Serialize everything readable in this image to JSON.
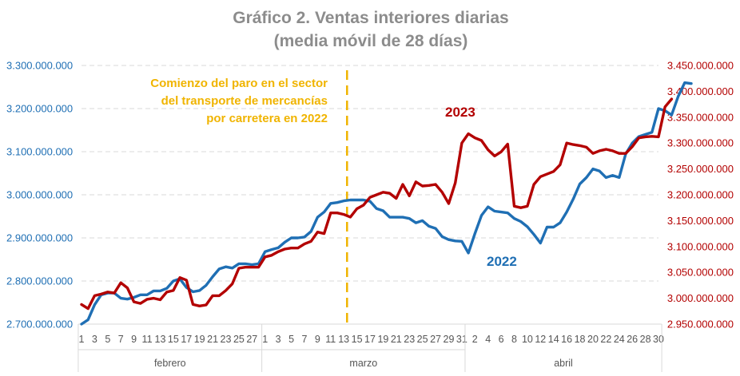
{
  "chart_data": {
    "type": "line",
    "title_line1": "Gráfico 2. Ventas interiores diarias",
    "title_line2": "(media móvil de 28 días)",
    "left_axis": {
      "min": 2700000000,
      "max": 3300000000,
      "ticks": [
        {
          "v": 2700000000,
          "label": "2.700.000.000"
        },
        {
          "v": 2800000000,
          "label": "2.800.000.000"
        },
        {
          "v": 2900000000,
          "label": "2.900.000.000"
        },
        {
          "v": 3000000000,
          "label": "3.000.000.000"
        },
        {
          "v": 3100000000,
          "label": "3.100.000.000"
        },
        {
          "v": 3200000000,
          "label": "3.200.000.000"
        },
        {
          "v": 3300000000,
          "label": "3.300.000.000"
        }
      ]
    },
    "right_axis": {
      "min": 2950000000,
      "max": 3450000000,
      "ticks": [
        {
          "v": 2950000000,
          "label": "2.950.000.000"
        },
        {
          "v": 3000000000,
          "label": "3.000.000.000"
        },
        {
          "v": 3050000000,
          "label": "3.050.000.000"
        },
        {
          "v": 3100000000,
          "label": "3.100.000.000"
        },
        {
          "v": 3150000000,
          "label": "3.150.000.000"
        },
        {
          "v": 3200000000,
          "label": "3.200.000.000"
        },
        {
          "v": 3250000000,
          "label": "3.250.000.000"
        },
        {
          "v": 3300000000,
          "label": "3.300.000.000"
        },
        {
          "v": 3350000000,
          "label": "3.350.000.000"
        },
        {
          "v": 3400000000,
          "label": "3.400.000.000"
        },
        {
          "v": 3450000000,
          "label": "3.450.000.000"
        }
      ]
    },
    "x_tick_labels": [
      "1",
      "3",
      "5",
      "7",
      "9",
      "11",
      "13",
      "15",
      "17",
      "19",
      "21",
      "23",
      "25",
      "27",
      "1",
      "3",
      "5",
      "7",
      "9",
      "11",
      "13",
      "15",
      "17",
      "19",
      "21",
      "23",
      "25",
      "27",
      "29",
      "31",
      "2",
      "4",
      "6",
      "8",
      "10",
      "12",
      "14",
      "16",
      "18",
      "20",
      "22",
      "24",
      "26",
      "28",
      "30"
    ],
    "months": [
      {
        "label": "febrero",
        "start": 0,
        "end": 28
      },
      {
        "label": "marzo",
        "start": 28,
        "end": 59
      },
      {
        "label": "abril",
        "start": 59,
        "end": 89
      }
    ],
    "annotation": {
      "lines": [
        "Comienzo del paro en el sector",
        "del transporte de mercancías",
        "por carretera  en 2022"
      ],
      "at_index": 40,
      "color": "#f0b400"
    },
    "series": [
      {
        "name": "2022",
        "axis": "left",
        "color": "#1f6fb4",
        "values": [
          2700000000,
          2710000000,
          2745000000,
          2768000000,
          2772000000,
          2772000000,
          2760000000,
          2758000000,
          2762000000,
          2768000000,
          2768000000,
          2777000000,
          2777000000,
          2783000000,
          2800000000,
          2805000000,
          2785000000,
          2775000000,
          2778000000,
          2790000000,
          2810000000,
          2828000000,
          2833000000,
          2830000000,
          2840000000,
          2840000000,
          2838000000,
          2840000000,
          2868000000,
          2873000000,
          2877000000,
          2890000000,
          2900000000,
          2900000000,
          2902000000,
          2915000000,
          2948000000,
          2960000000,
          2980000000,
          2982000000,
          2986000000,
          2988000000,
          2988000000,
          2988000000,
          2985000000,
          2968000000,
          2963000000,
          2948000000,
          2948000000,
          2948000000,
          2945000000,
          2935000000,
          2940000000,
          2927000000,
          2922000000,
          2903000000,
          2896000000,
          2893000000,
          2892000000,
          2865000000,
          2910000000,
          2952000000,
          2972000000,
          2962000000,
          2960000000,
          2958000000,
          2945000000,
          2938000000,
          2926000000,
          2908000000,
          2888000000,
          2925000000,
          2925000000,
          2935000000,
          2960000000,
          2990000000,
          3025000000,
          3040000000,
          3060000000,
          3055000000,
          3040000000,
          3045000000,
          3040000000,
          3095000000,
          3120000000,
          3135000000,
          3140000000,
          3145000000,
          3200000000,
          3195000000,
          3185000000,
          3228000000,
          3260000000,
          3258000000
        ]
      },
      {
        "name": "2023",
        "axis": "right",
        "color": "#b30000",
        "values": [
          2988000000,
          2980000000,
          3005000000,
          3008000000,
          3012000000,
          3010000000,
          3030000000,
          3020000000,
          2993000000,
          2990000000,
          2998000000,
          3000000000,
          2997000000,
          3012000000,
          3015000000,
          3040000000,
          3035000000,
          2988000000,
          2985000000,
          2987000000,
          3005000000,
          3005000000,
          3015000000,
          3028000000,
          3058000000,
          3060000000,
          3060000000,
          3060000000,
          3080000000,
          3083000000,
          3090000000,
          3095000000,
          3097000000,
          3097000000,
          3105000000,
          3110000000,
          3128000000,
          3125000000,
          3165000000,
          3165000000,
          3162000000,
          3157000000,
          3173000000,
          3180000000,
          3195000000,
          3200000000,
          3205000000,
          3203000000,
          3193000000,
          3220000000,
          3198000000,
          3225000000,
          3217000000,
          3218000000,
          3220000000,
          3205000000,
          3183000000,
          3223000000,
          3300000000,
          3318000000,
          3310000000,
          3305000000,
          3287000000,
          3275000000,
          3283000000,
          3298000000,
          3178000000,
          3175000000,
          3178000000,
          3220000000,
          3235000000,
          3240000000,
          3245000000,
          3258000000,
          3300000000,
          3297000000,
          3295000000,
          3292000000,
          3280000000,
          3285000000,
          3288000000,
          3285000000,
          3280000000,
          3280000000,
          3293000000,
          3310000000,
          3312000000,
          3313000000,
          3312000000,
          3370000000,
          3385000000
        ]
      }
    ],
    "series_labels": [
      {
        "text": "2023",
        "color": "#b30000"
      },
      {
        "text": "2022",
        "color": "#1f6fb4"
      }
    ]
  }
}
